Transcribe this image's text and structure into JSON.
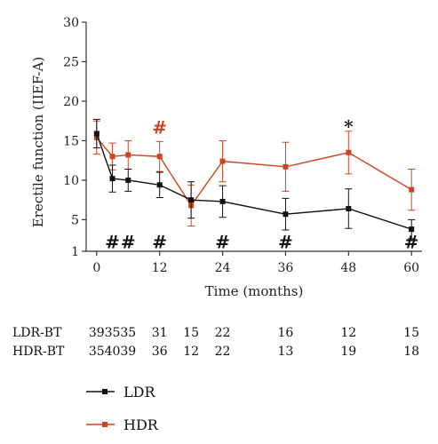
{
  "chart_data": {
    "type": "line",
    "xlabel": "Time (months)",
    "ylabel": "Erectile function (IIEF-A)",
    "xlim": [
      -2,
      62
    ],
    "ylim": [
      1,
      30
    ],
    "x_ticks": [
      0,
      12,
      24,
      36,
      48,
      60
    ],
    "y_ticks": [
      1,
      5,
      10,
      15,
      20,
      25,
      30
    ],
    "series": [
      {
        "name": "LDR",
        "color": "#111111",
        "x": [
          0,
          3,
          6,
          12,
          18,
          24,
          36,
          48,
          60
        ],
        "values": [
          15.9,
          10.2,
          10.0,
          9.4,
          7.5,
          7.3,
          5.7,
          6.4,
          3.8
        ],
        "error": [
          1.8,
          1.7,
          1.4,
          1.6,
          2.3,
          2.0,
          2.0,
          2.5,
          1.2
        ]
      },
      {
        "name": "HDR",
        "color": "#cc4422",
        "x": [
          0,
          3,
          6,
          12,
          18,
          24,
          36,
          48,
          60
        ],
        "values": [
          15.4,
          13.0,
          13.2,
          13.0,
          6.8,
          12.4,
          11.7,
          13.5,
          8.8
        ],
        "error": [
          2.1,
          1.7,
          1.8,
          1.9,
          2.6,
          2.6,
          3.1,
          2.7,
          2.6
        ]
      }
    ],
    "annotations": [
      {
        "text": "#",
        "x": 3,
        "y": 2.2,
        "color": "#111111"
      },
      {
        "text": "#",
        "x": 6,
        "y": 2.2,
        "color": "#111111"
      },
      {
        "text": "#",
        "x": 12,
        "y": 2.2,
        "color": "#111111"
      },
      {
        "text": "#",
        "x": 24,
        "y": 2.2,
        "color": "#111111"
      },
      {
        "text": "#",
        "x": 36,
        "y": 2.2,
        "color": "#111111"
      },
      {
        "text": "#",
        "x": 60,
        "y": 2.2,
        "color": "#111111"
      },
      {
        "text": "#",
        "x": 12,
        "y": 16.7,
        "color": "#cc4422"
      },
      {
        "text": "*",
        "x": 48,
        "y": 16.8,
        "color": "#111111"
      }
    ],
    "n_table": {
      "x": [
        0,
        3,
        6,
        12,
        18,
        24,
        36,
        48,
        60
      ],
      "rows": [
        {
          "label": "LDR-BT",
          "values": [
            "39",
            "35",
            "35",
            "31",
            "15",
            "22",
            "16",
            "12",
            "15"
          ]
        },
        {
          "label": "HDR-BT",
          "values": [
            "35",
            "40",
            "39",
            "36",
            "12",
            "22",
            "13",
            "19",
            "18"
          ]
        }
      ]
    },
    "legend": {
      "position": "bottom-left",
      "entries": [
        {
          "label": "LDR",
          "color": "#111111"
        },
        {
          "label": "HDR",
          "color": "#cc4422"
        }
      ]
    }
  }
}
